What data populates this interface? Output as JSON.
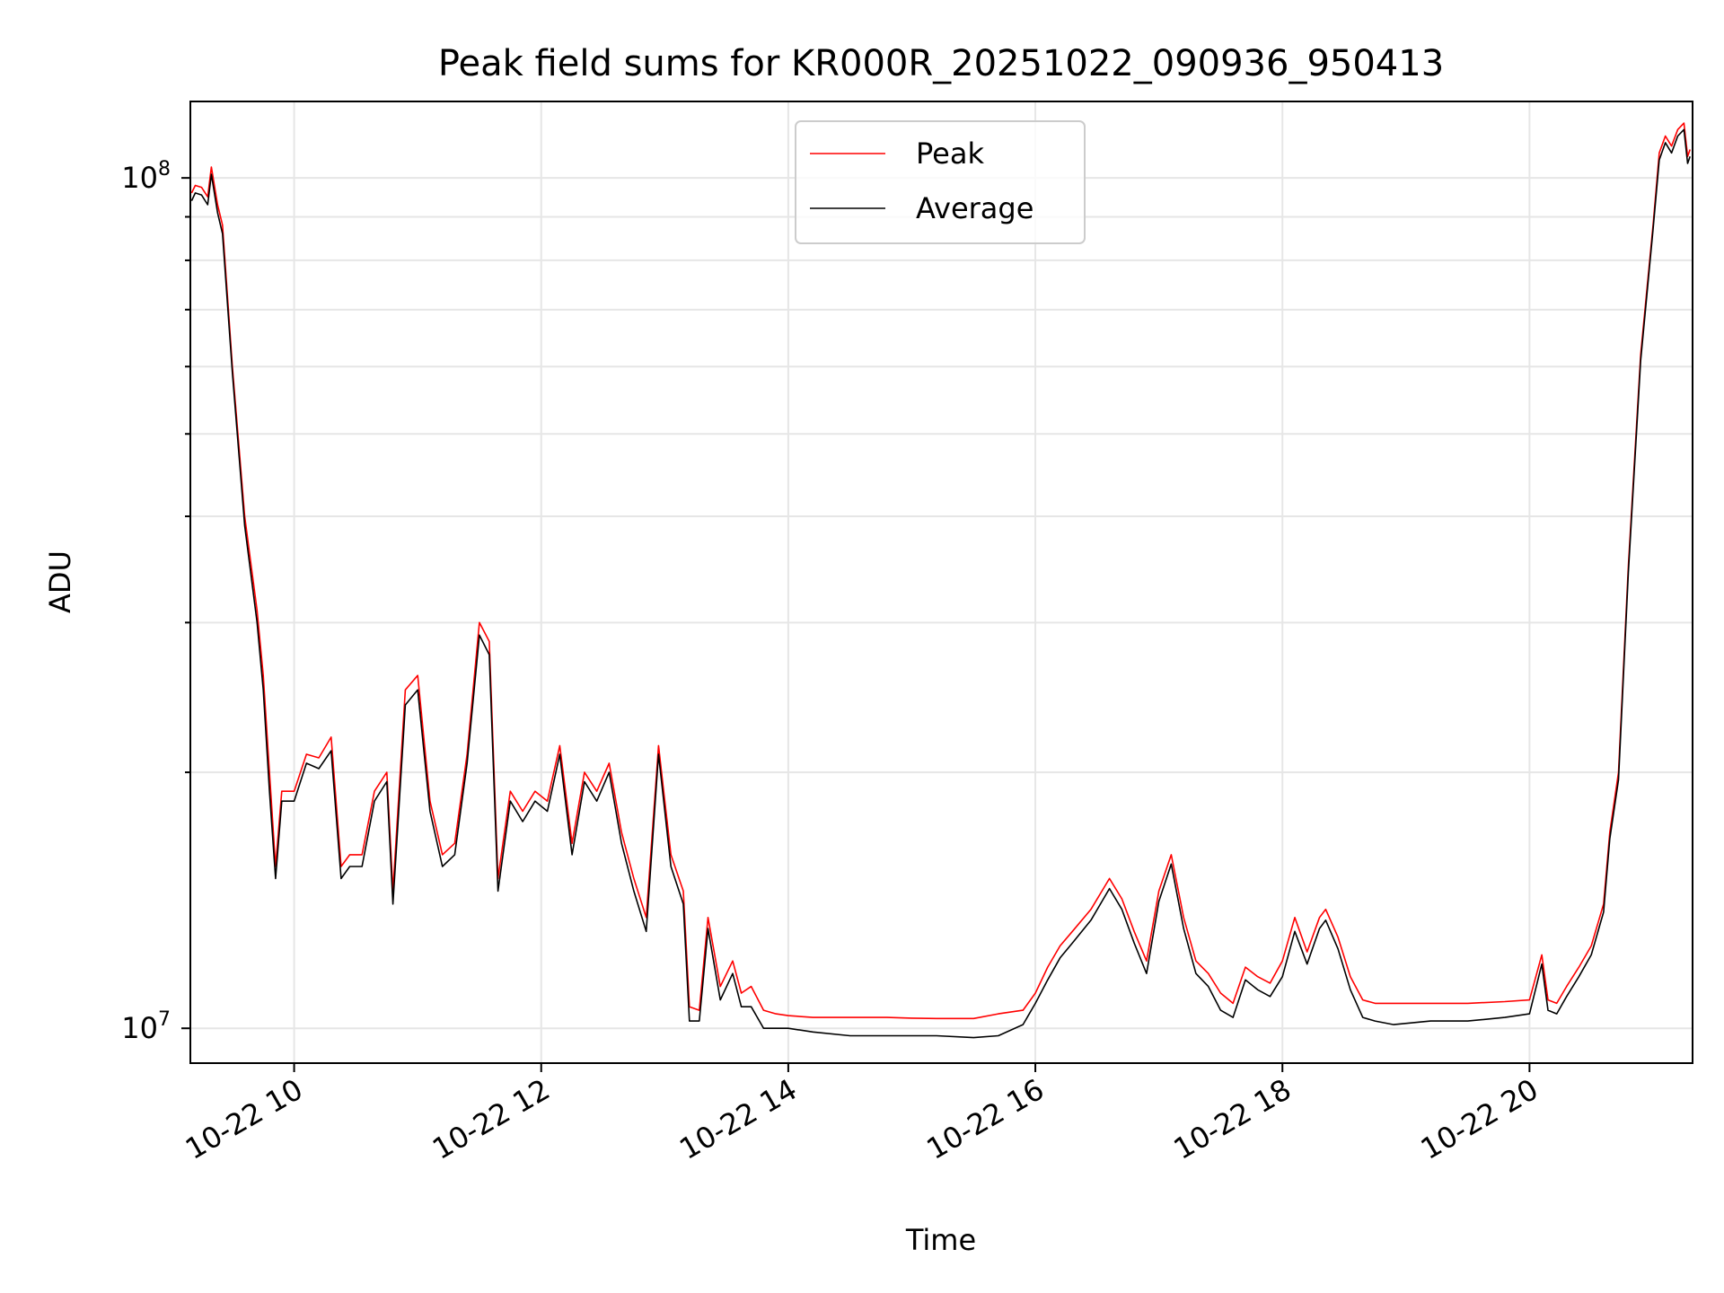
{
  "chart_data": {
    "type": "line",
    "title": "Peak field sums for KR000R_20251022_090936_950413",
    "xlabel": "Time",
    "ylabel": "ADU",
    "yscale": "log",
    "xlim": [
      9.16,
      21.32
    ],
    "ylim": [
      9100000,
      123000000
    ],
    "grid": true,
    "legend_position": "top-center",
    "x_ticks": [
      {
        "value": 10,
        "label": "10-22 10"
      },
      {
        "value": 12,
        "label": "10-22 12"
      },
      {
        "value": 14,
        "label": "10-22 14"
      },
      {
        "value": 16,
        "label": "10-22 16"
      },
      {
        "value": 18,
        "label": "10-22 18"
      },
      {
        "value": 20,
        "label": "10-22 20"
      }
    ],
    "y_ticks": [
      {
        "value": 10000000,
        "base": "10",
        "exp": "7"
      },
      {
        "value": 100000000,
        "base": "10",
        "exp": "8"
      }
    ],
    "x": [
      9.17,
      9.2,
      9.25,
      9.3,
      9.33,
      9.38,
      9.42,
      9.5,
      9.6,
      9.7,
      9.75,
      9.8,
      9.85,
      9.9,
      10.0,
      10.1,
      10.2,
      10.3,
      10.38,
      10.45,
      10.55,
      10.65,
      10.75,
      10.8,
      10.9,
      11.0,
      11.1,
      11.2,
      11.3,
      11.4,
      11.5,
      11.58,
      11.65,
      11.75,
      11.85,
      11.95,
      12.05,
      12.15,
      12.25,
      12.35,
      12.45,
      12.55,
      12.65,
      12.75,
      12.85,
      12.95,
      13.05,
      13.15,
      13.2,
      13.28,
      13.35,
      13.45,
      13.55,
      13.62,
      13.7,
      13.8,
      13.9,
      14.0,
      14.2,
      14.5,
      14.8,
      15.0,
      15.2,
      15.5,
      15.7,
      15.9,
      16.0,
      16.1,
      16.2,
      16.3,
      16.45,
      16.6,
      16.7,
      16.8,
      16.9,
      17.0,
      17.1,
      17.2,
      17.3,
      17.4,
      17.5,
      17.6,
      17.7,
      17.8,
      17.9,
      18.0,
      18.1,
      18.2,
      18.3,
      18.35,
      18.45,
      18.55,
      18.65,
      18.75,
      18.9,
      19.2,
      19.5,
      19.8,
      20.0,
      20.1,
      20.15,
      20.22,
      20.3,
      20.4,
      20.5,
      20.6,
      20.65,
      20.72,
      20.8,
      20.9,
      21.0,
      21.05,
      21.1,
      21.15,
      21.2,
      21.25,
      21.28,
      21.3
    ],
    "series": [
      {
        "name": "Peak",
        "color": "#ff0000",
        "values": [
          96000000,
          98000000,
          97500000,
          95000000,
          103000000,
          93000000,
          88000000,
          60000000,
          40000000,
          31000000,
          26000000,
          20000000,
          15500000,
          19000000,
          19000000,
          21000000,
          20800000,
          22000000,
          15500000,
          16000000,
          16000000,
          19000000,
          20000000,
          14500000,
          25000000,
          26000000,
          18500000,
          16000000,
          16500000,
          21000000,
          30000000,
          28500000,
          15000000,
          19000000,
          18000000,
          19000000,
          18500000,
          21500000,
          16500000,
          20000000,
          19000000,
          20500000,
          17000000,
          15000000,
          13500000,
          21500000,
          16000000,
          14500000,
          10600000,
          10500000,
          13500000,
          11200000,
          12000000,
          11000000,
          11200000,
          10500000,
          10400000,
          10350000,
          10300000,
          10300000,
          10300000,
          10280000,
          10270000,
          10270000,
          10400000,
          10500000,
          11000000,
          11800000,
          12500000,
          13000000,
          13800000,
          15000000,
          14200000,
          13000000,
          12000000,
          14500000,
          16000000,
          13500000,
          12000000,
          11600000,
          11000000,
          10700000,
          11800000,
          11500000,
          11300000,
          12000000,
          13500000,
          12300000,
          13500000,
          13800000,
          12800000,
          11500000,
          10800000,
          10700000,
          10700000,
          10700000,
          10700000,
          10750000,
          10800000,
          12200000,
          10800000,
          10700000,
          11200000,
          11800000,
          12500000,
          14000000,
          17000000,
          20000000,
          35000000,
          62000000,
          88000000,
          107000000,
          112000000,
          109000000,
          114000000,
          116000000,
          106000000,
          108000000
        ]
      },
      {
        "name": "Average",
        "color": "#000000",
        "values": [
          94000000,
          96000000,
          95500000,
          93000000,
          101000000,
          91000000,
          86000000,
          59000000,
          39000000,
          30000000,
          25000000,
          19000000,
          15000000,
          18500000,
          18500000,
          20500000,
          20200000,
          21200000,
          15000000,
          15500000,
          15500000,
          18500000,
          19500000,
          14000000,
          24000000,
          25000000,
          18000000,
          15500000,
          16000000,
          20500000,
          29000000,
          27500000,
          14500000,
          18500000,
          17500000,
          18500000,
          18000000,
          21000000,
          16000000,
          19500000,
          18500000,
          20000000,
          16500000,
          14500000,
          13000000,
          21000000,
          15500000,
          14000000,
          10200000,
          10200000,
          13100000,
          10800000,
          11600000,
          10600000,
          10600000,
          10000000,
          10000000,
          10000000,
          9900000,
          9800000,
          9800000,
          9800000,
          9800000,
          9750000,
          9800000,
          10100000,
          10700000,
          11400000,
          12100000,
          12600000,
          13400000,
          14600000,
          13800000,
          12600000,
          11600000,
          14100000,
          15600000,
          13100000,
          11600000,
          11200000,
          10500000,
          10300000,
          11400000,
          11100000,
          10900000,
          11500000,
          13000000,
          11900000,
          13100000,
          13400000,
          12400000,
          11100000,
          10300000,
          10200000,
          10100000,
          10200000,
          10200000,
          10300000,
          10400000,
          11900000,
          10500000,
          10400000,
          10900000,
          11500000,
          12200000,
          13700000,
          16700000,
          19600000,
          34400000,
          61000000,
          87000000,
          105000000,
          110000000,
          107000000,
          112000000,
          114000000,
          104000000,
          106000000
        ]
      }
    ]
  }
}
